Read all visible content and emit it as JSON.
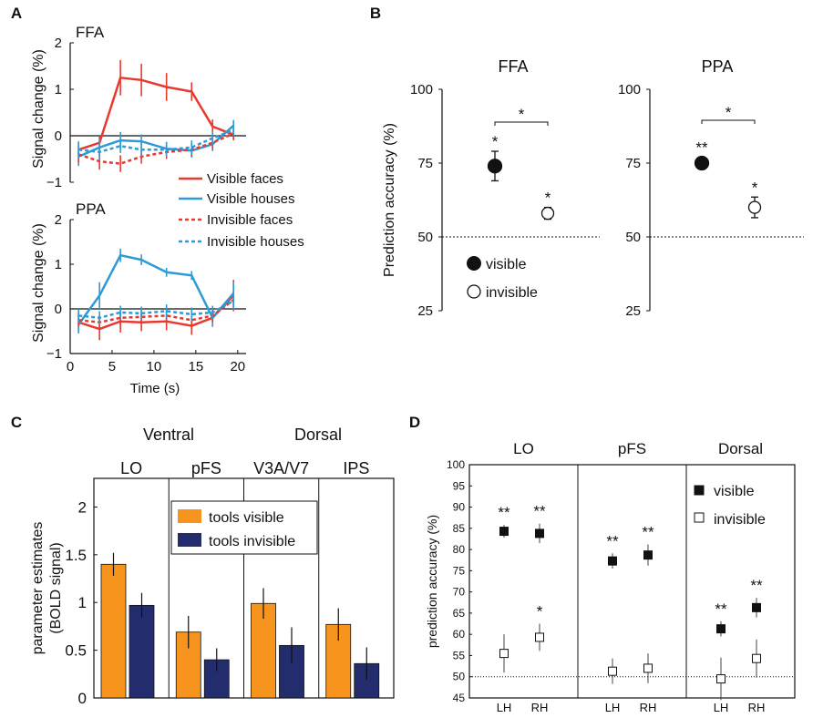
{
  "colors": {
    "red": "#e8392f",
    "blue": "#2f9ad6",
    "orange": "#f7941d",
    "navy": "#232d6e",
    "black": "#111111"
  },
  "chart_data": [
    {
      "id": "A",
      "type": "line",
      "panel_label": "A",
      "xlabel": "Time (s)",
      "ylabel": "Signal change (%)",
      "xlim": [
        0,
        21
      ],
      "xticks": [
        0,
        5,
        10,
        15,
        20
      ],
      "ylim": [
        -1,
        2
      ],
      "yticks": [
        -1,
        0,
        1,
        2
      ],
      "legend": [
        "Visible faces",
        "Visible houses",
        "Invisible faces",
        "Invisible houses"
      ],
      "subplots": [
        {
          "title": "FFA",
          "x": [
            1,
            3.5,
            6,
            8.5,
            11.5,
            14.5,
            17,
            19.5
          ],
          "series": [
            {
              "name": "Visible faces",
              "color": "#e8392f",
              "dash": false,
              "values": [
                -0.3,
                -0.15,
                1.25,
                1.2,
                1.05,
                0.95,
                0.2,
                0.02
              ],
              "errors": [
                0.15,
                0.15,
                0.38,
                0.35,
                0.3,
                0.2,
                0.15,
                0.12
              ]
            },
            {
              "name": "Visible houses",
              "color": "#2f9ad6",
              "dash": false,
              "values": [
                -0.45,
                -0.25,
                -0.1,
                -0.12,
                -0.28,
                -0.32,
                -0.18,
                0.22
              ],
              "errors": [
                0.2,
                0.2,
                0.18,
                0.15,
                0.15,
                0.15,
                0.15,
                0.12
              ]
            },
            {
              "name": "Invisible faces",
              "color": "#e8392f",
              "dash": true,
              "values": [
                -0.4,
                -0.55,
                -0.6,
                -0.45,
                -0.35,
                -0.3,
                -0.15,
                0.05
              ],
              "errors": [
                0.18,
                0.18,
                0.18,
                0.15,
                0.15,
                0.15,
                0.15,
                0.12
              ]
            },
            {
              "name": "Invisible houses",
              "color": "#2f9ad6",
              "dash": true,
              "values": [
                -0.3,
                -0.35,
                -0.22,
                -0.3,
                -0.3,
                -0.25,
                -0.05,
                0.12
              ],
              "errors": [
                0.18,
                0.18,
                0.15,
                0.15,
                0.15,
                0.15,
                0.15,
                0.12
              ]
            }
          ]
        },
        {
          "title": "PPA",
          "x": [
            1,
            3.5,
            6,
            8.5,
            11.5,
            14.5,
            17,
            19.5
          ],
          "series": [
            {
              "name": "Visible faces",
              "color": "#e8392f",
              "dash": false,
              "values": [
                -0.3,
                -0.45,
                -0.28,
                -0.3,
                -0.28,
                -0.38,
                -0.2,
                0.3
              ],
              "errors": [
                0.2,
                0.25,
                0.25,
                0.2,
                0.2,
                0.2,
                0.2,
                0.35
              ]
            },
            {
              "name": "Visible houses",
              "color": "#2f9ad6",
              "dash": false,
              "values": [
                -0.35,
                0.3,
                1.2,
                1.1,
                0.82,
                0.75,
                -0.2,
                0.35
              ],
              "errors": [
                0.2,
                0.3,
                0.15,
                0.12,
                0.1,
                0.1,
                0.2,
                0.25
              ]
            },
            {
              "name": "Invisible faces",
              "color": "#e8392f",
              "dash": true,
              "values": [
                -0.25,
                -0.3,
                -0.2,
                -0.18,
                -0.15,
                -0.25,
                -0.15,
                0.2
              ],
              "errors": [
                0.15,
                0.15,
                0.15,
                0.15,
                0.15,
                0.15,
                0.15,
                0.2
              ]
            },
            {
              "name": "Invisible houses",
              "color": "#2f9ad6",
              "dash": true,
              "values": [
                -0.15,
                -0.2,
                -0.08,
                -0.1,
                -0.05,
                -0.12,
                -0.08,
                0.18
              ],
              "errors": [
                0.15,
                0.15,
                0.15,
                0.15,
                0.15,
                0.15,
                0.15,
                0.2
              ]
            }
          ]
        }
      ]
    },
    {
      "id": "B",
      "type": "scatter",
      "panel_label": "B",
      "ylabel": "Prediction accuracy (%)",
      "ylim": [
        25,
        100
      ],
      "yticks": [
        25,
        50,
        75,
        100
      ],
      "chance": 50,
      "legend": [
        "visible",
        "invisible"
      ],
      "subplots": [
        {
          "title": "FFA",
          "points": [
            {
              "condition": "visible",
              "value": 74,
              "error": 5,
              "sig": "*"
            },
            {
              "condition": "invisible",
              "value": 58,
              "error": 2,
              "sig": "*"
            }
          ],
          "comparison": "*"
        },
        {
          "title": "PPA",
          "points": [
            {
              "condition": "visible",
              "value": 75,
              "error": 2,
              "sig": "**"
            },
            {
              "condition": "invisible",
              "value": 60,
              "error": 3.5,
              "sig": "*"
            }
          ],
          "comparison": "*"
        }
      ]
    },
    {
      "id": "C",
      "type": "bar",
      "panel_label": "C",
      "ylabel_lines": [
        "parameter estimates",
        "(BOLD signal)"
      ],
      "ylim": [
        0,
        2.3
      ],
      "yticks": [
        0,
        0.5,
        1,
        1.5,
        2
      ],
      "group_headers": [
        "Ventral",
        "Dorsal"
      ],
      "categories": [
        "LO",
        "pFS",
        "V3A/V7",
        "IPS"
      ],
      "series": [
        {
          "name": "tools visible",
          "color": "#f7941d",
          "values": [
            1.4,
            0.69,
            0.99,
            0.77
          ],
          "errors": [
            0.12,
            0.17,
            0.16,
            0.17
          ]
        },
        {
          "name": "tools invisible",
          "color": "#232d6e",
          "values": [
            0.97,
            0.4,
            0.55,
            0.36
          ],
          "errors": [
            0.13,
            0.12,
            0.19,
            0.17
          ]
        }
      ]
    },
    {
      "id": "D",
      "type": "scatter",
      "panel_label": "D",
      "ylabel": "prediction accuracy (%)",
      "ylim": [
        45,
        100
      ],
      "yticks": [
        45,
        50,
        55,
        60,
        65,
        70,
        75,
        80,
        85,
        90,
        95,
        100
      ],
      "chance": 50,
      "legend": [
        "visible",
        "invisible"
      ],
      "groups": [
        {
          "title": "LO",
          "points": [
            {
              "label": "LH",
              "visible": 84.3,
              "visible_err": 1.5,
              "visible_sig": "**",
              "invisible": 55.5,
              "invisible_err": 4.5,
              "invisible_sig": ""
            },
            {
              "label": "RH",
              "visible": 83.8,
              "visible_err": 2.3,
              "visible_sig": "**",
              "invisible": 59.3,
              "invisible_err": 3.2,
              "invisible_sig": "*"
            }
          ]
        },
        {
          "title": "pFS",
          "points": [
            {
              "label": "LH",
              "visible": 77.3,
              "visible_err": 1.8,
              "visible_sig": "**",
              "invisible": 51.3,
              "invisible_err": 3,
              "invisible_sig": ""
            },
            {
              "label": "RH",
              "visible": 78.7,
              "visible_err": 2.5,
              "visible_sig": "**",
              "invisible": 52,
              "invisible_err": 3.5,
              "invisible_sig": ""
            }
          ]
        },
        {
          "title": "Dorsal",
          "points": [
            {
              "label": "LH",
              "visible": 61.3,
              "visible_err": 1.8,
              "visible_sig": "**",
              "invisible": 49.5,
              "invisible_err": 5,
              "invisible_sig": ""
            },
            {
              "label": "RH",
              "visible": 66.3,
              "visible_err": 2.3,
              "visible_sig": "**",
              "invisible": 54.3,
              "invisible_err": 4.5,
              "invisible_sig": ""
            }
          ]
        }
      ]
    }
  ]
}
